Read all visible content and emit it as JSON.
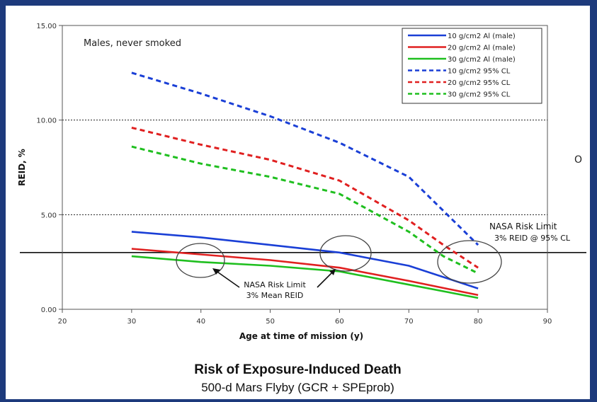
{
  "chart_data": {
    "type": "line",
    "subtitle": "Males, never smoked",
    "xlabel": "Age at time of mission (y)",
    "ylabel": "REID, %",
    "xlim": [
      20,
      90
    ],
    "ylim": [
      0,
      15
    ],
    "x_ticks": [
      "20",
      "30",
      "40",
      "50",
      "60",
      "70",
      "80",
      "90"
    ],
    "y_ticks": [
      "0.00",
      "5.00",
      "10.00",
      "15.00"
    ],
    "grid": "dotted horizontal at 5 and 10",
    "legend_position": "top-right",
    "series": [
      {
        "name": "10 g/cm2 Al (male)",
        "style": "solid",
        "color": "#1a3fd6",
        "x": [
          30,
          40,
          50,
          60,
          70,
          80
        ],
        "y": [
          4.1,
          3.8,
          3.4,
          3.0,
          2.3,
          1.1
        ]
      },
      {
        "name": "20 g/cm2 Al (male)",
        "style": "solid",
        "color": "#e02020",
        "x": [
          30,
          40,
          50,
          60,
          70,
          80
        ],
        "y": [
          3.2,
          2.9,
          2.6,
          2.2,
          1.5,
          0.75
        ]
      },
      {
        "name": "30 g/cm2 Al (male)",
        "style": "solid",
        "color": "#1fbf1f",
        "x": [
          30,
          40,
          50,
          60,
          70,
          80
        ],
        "y": [
          2.8,
          2.5,
          2.3,
          2.0,
          1.3,
          0.6
        ]
      },
      {
        "name": "10 g/cm2 95% CL",
        "style": "dashed",
        "color": "#1a3fd6",
        "x": [
          30,
          40,
          50,
          60,
          70,
          75,
          80
        ],
        "y": [
          12.5,
          11.4,
          10.2,
          8.8,
          7.0,
          5.2,
          3.4
        ]
      },
      {
        "name": "20 g/cm2 95% CL",
        "style": "dashed",
        "color": "#e02020",
        "x": [
          30,
          40,
          50,
          60,
          70,
          75,
          80
        ],
        "y": [
          9.6,
          8.7,
          7.9,
          6.8,
          4.7,
          3.4,
          2.2
        ]
      },
      {
        "name": "30 g/cm2 95% CL",
        "style": "dashed",
        "color": "#1fbf1f",
        "x": [
          30,
          40,
          50,
          60,
          70,
          75,
          80
        ],
        "y": [
          8.6,
          7.7,
          7.0,
          6.1,
          4.1,
          2.8,
          1.9
        ]
      }
    ],
    "reference_line": {
      "y": 3
    },
    "annotations": [
      {
        "label": "NASA Risk Limit",
        "sublabel": "3% Mean REID"
      },
      {
        "label": "NASA Risk Limit",
        "sublabel": "3% REID @ 95% CL"
      }
    ]
  },
  "caption": {
    "title": "Risk of Exposure-Induced Death",
    "subtitle": "500-d Mars Flyby (GCR + SPEprob)"
  },
  "side_mark": "O"
}
